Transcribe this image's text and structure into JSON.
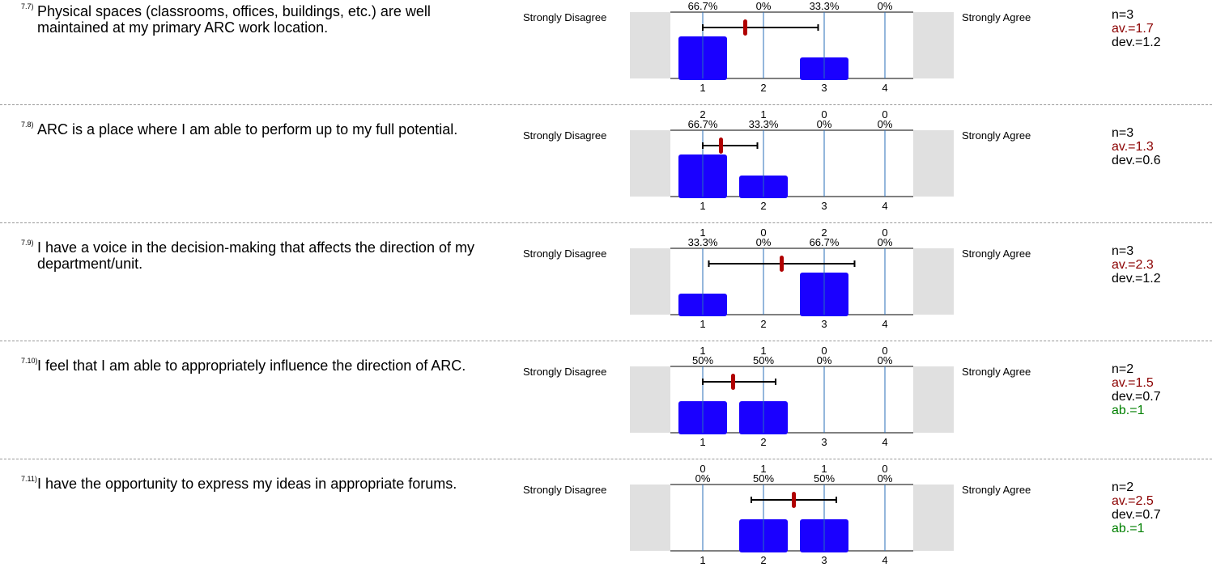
{
  "labels": {
    "left": "Strongly Disagree",
    "right": "Strongly Agree"
  },
  "colors": {
    "bar": "#1a00ff",
    "mean": "#b00000",
    "avg_text": "#8b0000",
    "abstain_text": "#008000",
    "gridline": "#2a6fb8",
    "side_box": "#e0e0e0"
  },
  "chart_data": [
    {
      "type": "bar",
      "question_number": "7.7)",
      "question": "Physical spaces (classrooms, offices, buildings, etc.) are well maintained at my primary ARC work location.",
      "categories": [
        "1",
        "2",
        "3",
        "4"
      ],
      "counts": [
        "",
        "",
        "",
        ""
      ],
      "percent_labels": [
        "66.7%",
        "0%",
        "33.3%",
        "0%"
      ],
      "percentages": [
        66.7,
        0,
        33.3,
        0
      ],
      "mean": 1.7,
      "std_dev": 1.2,
      "ylim": [
        0,
        100
      ],
      "stats": {
        "n": "n=3",
        "av": "av.=1.7",
        "dev": "dev.=1.2",
        "ab": ""
      }
    },
    {
      "type": "bar",
      "question_number": "7.8)",
      "question": "ARC is a place where I am able to perform up to my full potential.",
      "categories": [
        "1",
        "2",
        "3",
        "4"
      ],
      "counts": [
        "2",
        "1",
        "0",
        "0"
      ],
      "percent_labels": [
        "66.7%",
        "33.3%",
        "0%",
        "0%"
      ],
      "percentages": [
        66.7,
        33.3,
        0,
        0
      ],
      "mean": 1.3,
      "std_dev": 0.6,
      "ylim": [
        0,
        100
      ],
      "stats": {
        "n": "n=3",
        "av": "av.=1.3",
        "dev": "dev.=0.6",
        "ab": ""
      }
    },
    {
      "type": "bar",
      "question_number": "7.9)",
      "question": "I have a voice in the decision-making that affects the direction of my department/unit.",
      "categories": [
        "1",
        "2",
        "3",
        "4"
      ],
      "counts": [
        "1",
        "0",
        "2",
        "0"
      ],
      "percent_labels": [
        "33.3%",
        "0%",
        "66.7%",
        "0%"
      ],
      "percentages": [
        33.3,
        0,
        66.7,
        0
      ],
      "mean": 2.3,
      "std_dev": 1.2,
      "ylim": [
        0,
        100
      ],
      "stats": {
        "n": "n=3",
        "av": "av.=2.3",
        "dev": "dev.=1.2",
        "ab": ""
      }
    },
    {
      "type": "bar",
      "question_number": "7.10)",
      "question": "I feel that I am able to appropriately influence the direction of ARC.",
      "categories": [
        "1",
        "2",
        "3",
        "4"
      ],
      "counts": [
        "1",
        "1",
        "0",
        "0"
      ],
      "percent_labels": [
        "50%",
        "50%",
        "0%",
        "0%"
      ],
      "percentages": [
        50,
        50,
        0,
        0
      ],
      "mean": 1.5,
      "std_dev": 0.7,
      "ylim": [
        0,
        100
      ],
      "stats": {
        "n": "n=2",
        "av": "av.=1.5",
        "dev": "dev.=0.7",
        "ab": "ab.=1"
      }
    },
    {
      "type": "bar",
      "question_number": "7.11)",
      "question": "I have the opportunity to express my ideas in appropriate forums.",
      "categories": [
        "1",
        "2",
        "3",
        "4"
      ],
      "counts": [
        "0",
        "1",
        "1",
        "0"
      ],
      "percent_labels": [
        "0%",
        "50%",
        "50%",
        "0%"
      ],
      "percentages": [
        0,
        50,
        50,
        0
      ],
      "mean": 2.5,
      "std_dev": 0.7,
      "ylim": [
        0,
        100
      ],
      "stats": {
        "n": "n=2",
        "av": "av.=2.5",
        "dev": "dev.=0.7",
        "ab": "ab.=1"
      }
    }
  ]
}
